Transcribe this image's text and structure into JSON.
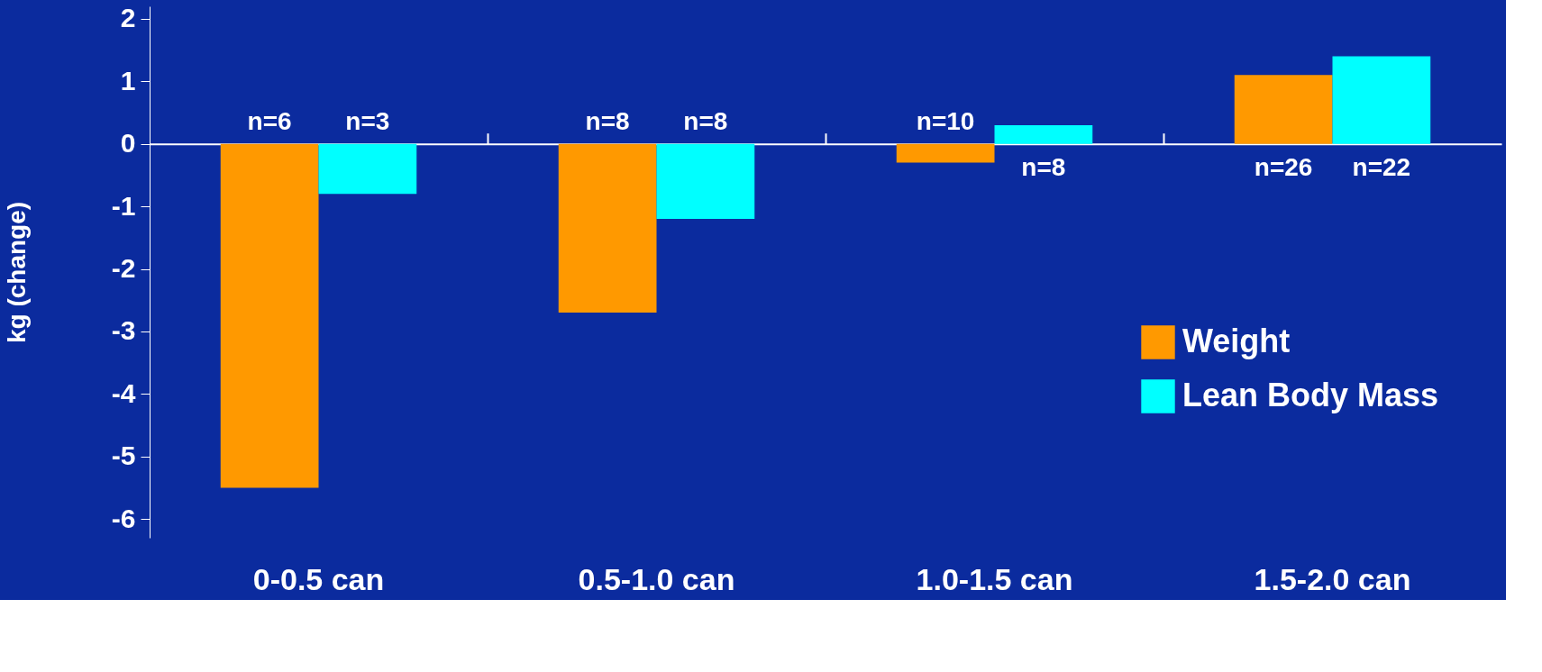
{
  "chart_data": {
    "type": "bar",
    "ylabel": "kg (change)",
    "categories": [
      "0-0.5 can",
      "0.5-1.0 can",
      "1.0-1.5 can",
      "1.5-2.0 can"
    ],
    "series": [
      {
        "name": "Weight",
        "color": "#ff9900",
        "values": [
          -5.5,
          -2.7,
          -0.3,
          1.1
        ]
      },
      {
        "name": "Lean Body Mass",
        "color": "#00ffff",
        "values": [
          -0.8,
          -1.2,
          0.3,
          1.4
        ]
      }
    ],
    "annotations": [
      "n=6",
      "n=3",
      "n=8",
      "n=8",
      "n=10",
      "n=8",
      "n=26",
      "n=22"
    ],
    "ylim": [
      -6.3,
      2.2
    ],
    "yticks": [
      -6,
      -5,
      -4,
      -3,
      -2,
      -1,
      0,
      1,
      2
    ],
    "legend": "right"
  }
}
